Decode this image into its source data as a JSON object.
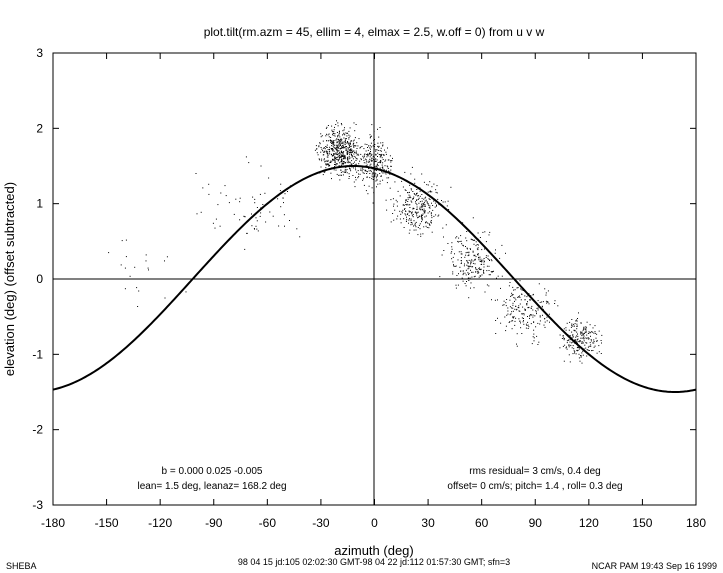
{
  "chart_data": {
    "type": "scatter",
    "title": "plot.tilt(rm.azm = 45, ellim = 4, elmax = 2.5, w.off = 0) from u v w",
    "xlabel": "azimuth (deg)",
    "ylabel": "elevation (deg)  (offset subtracted)",
    "xlim": [
      -180,
      180
    ],
    "ylim": [
      -3,
      3
    ],
    "xticks": [
      -180,
      -150,
      -120,
      -90,
      -60,
      -30,
      0,
      30,
      60,
      90,
      120,
      150,
      180
    ],
    "yticks": [
      -3,
      -2,
      -1,
      0,
      1,
      2,
      3
    ],
    "grid": false,
    "zero_lines": true,
    "fit_curve": {
      "lean_deg": 1.5,
      "leanaz_deg": 168.2,
      "note": "elevation = -lean * cos(azimuth - leanaz)"
    },
    "scatter_clusters": [
      {
        "x": -20,
        "y": 1.7,
        "sx": 10,
        "sy": 0.25,
        "n": 520
      },
      {
        "x": 0,
        "y": 1.55,
        "sx": 8,
        "sy": 0.3,
        "n": 260
      },
      {
        "x": 25,
        "y": 0.95,
        "sx": 12,
        "sy": 0.3,
        "n": 280
      },
      {
        "x": 55,
        "y": 0.25,
        "sx": 12,
        "sy": 0.3,
        "n": 230
      },
      {
        "x": 85,
        "y": -0.4,
        "sx": 14,
        "sy": 0.3,
        "n": 200
      },
      {
        "x": 115,
        "y": -0.8,
        "sx": 9,
        "sy": 0.22,
        "n": 220
      },
      {
        "x": -70,
        "y": 1.0,
        "sx": 22,
        "sy": 0.45,
        "n": 70
      },
      {
        "x": -130,
        "y": 0.1,
        "sx": 22,
        "sy": 0.5,
        "n": 20
      }
    ],
    "annotations": {
      "coef": "b =  0.000  0.025 -0.005",
      "lean": "lean= 1.5 deg, leanaz= 168.2 deg",
      "rms": "rms residual= 3 cm/s, 0.4 deg",
      "offset": "offset= 0 cm/s; pitch= 1.4 , roll= 0.3 deg"
    }
  },
  "footer": {
    "left": "SHEBA",
    "center": "98 04 15 jd:105 02:02:30 GMT-98 04 22 jd:112 01:57:30 GMT; sfn=3",
    "right": "NCAR PAM 19:43 Sep 16 1999"
  }
}
